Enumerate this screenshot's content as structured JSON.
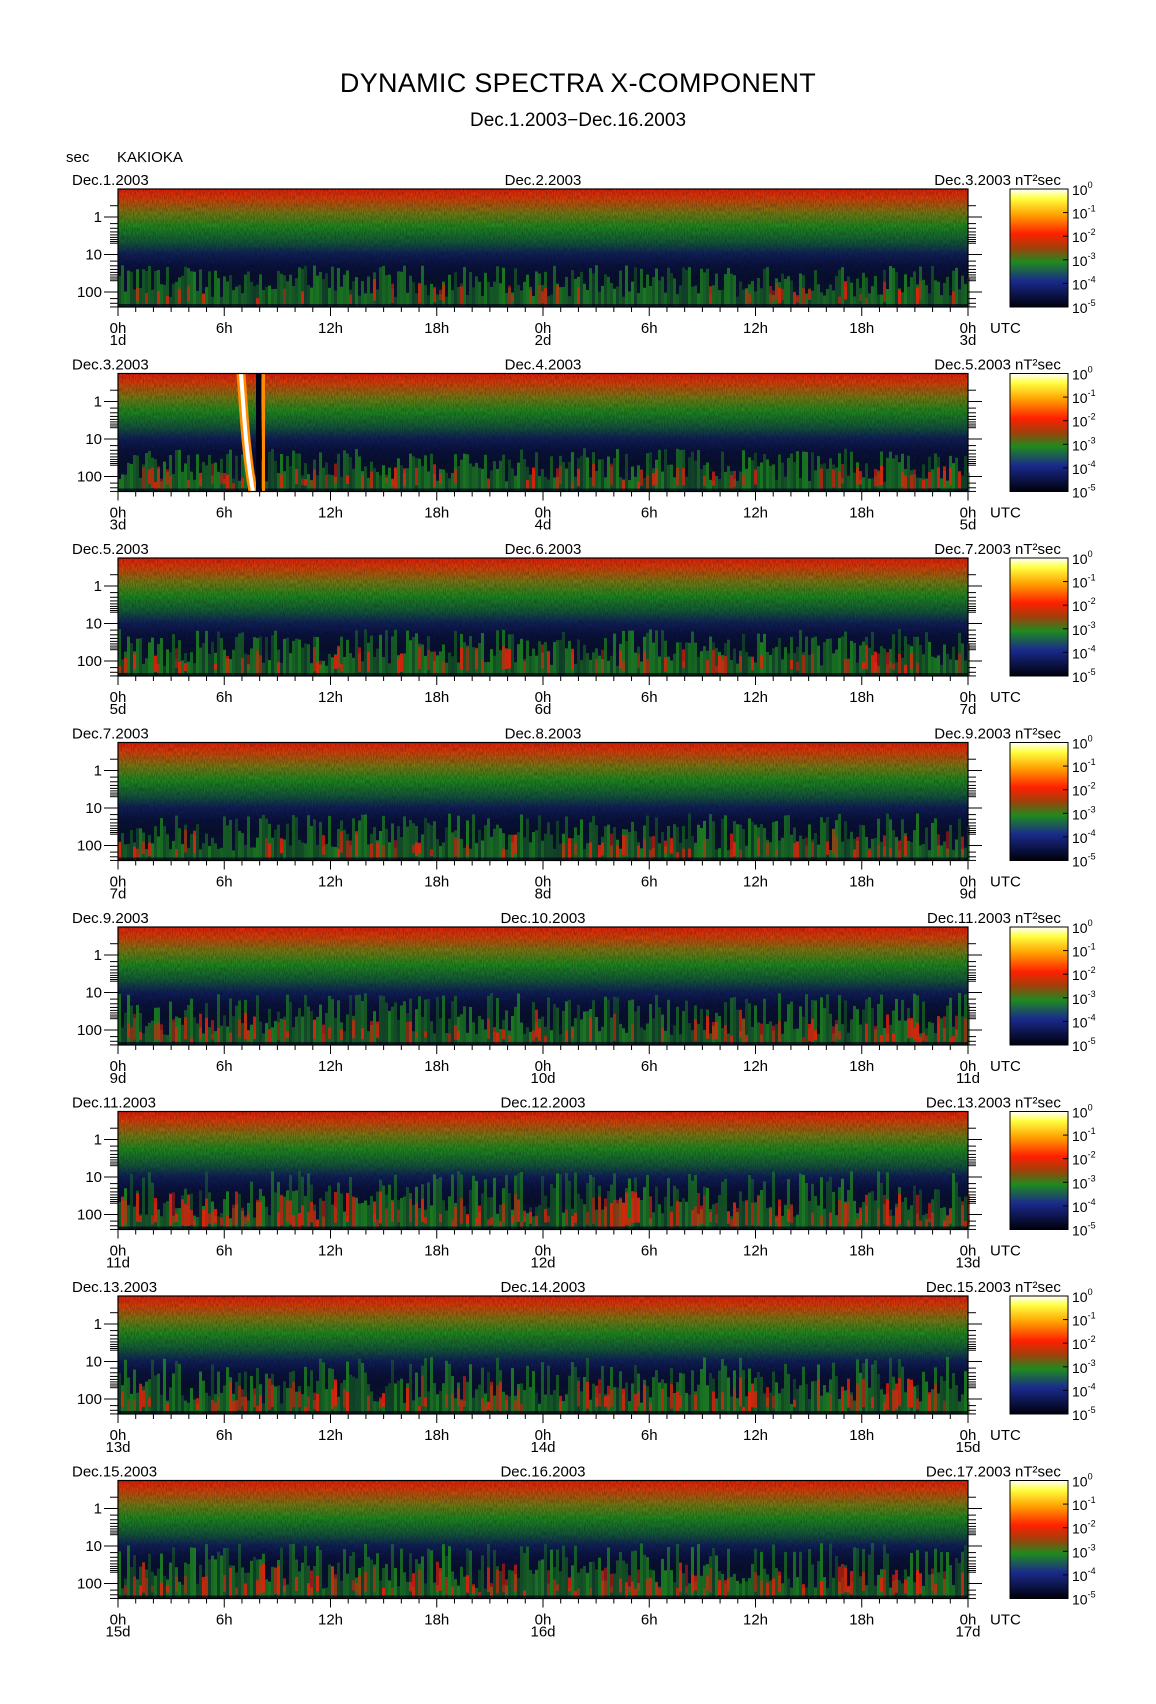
{
  "title": "DYNAMIC SPECTRA X-COMPONENT",
  "subtitle": "Dec.1.2003−Dec.16.2003",
  "y_unit_label": "sec",
  "station": "KAKIOKA",
  "power_unit": "nT²sec",
  "utc_label": "UTC",
  "colors": {
    "low": "#00001a",
    "blue": "#1a2a8c",
    "green": "#1f8a1f",
    "red": "#e8200a",
    "orange": "#ff8c00",
    "yellow": "#ffff30",
    "white": "#ffffff"
  },
  "chart_data": {
    "type": "heatmap",
    "ylabel": "sec",
    "y_ticks": [
      "1",
      "10",
      "100"
    ],
    "x_ticks": [
      "0h",
      "6h",
      "12h",
      "18h",
      "0h",
      "6h",
      "12h",
      "18h",
      "0h"
    ],
    "colorbar_ticks": [
      {
        "base": "10",
        "exp": "0"
      },
      {
        "base": "10",
        "exp": "-1"
      },
      {
        "base": "10",
        "exp": "-2"
      },
      {
        "base": "10",
        "exp": "-3"
      },
      {
        "base": "10",
        "exp": "-4"
      },
      {
        "base": "10",
        "exp": "-5"
      }
    ],
    "panels": [
      {
        "date_start": "Dec.1.2003",
        "date_mid": "Dec.2.2003",
        "date_end": "Dec.3.2003",
        "day_labels": [
          "1d",
          "2d",
          "3d"
        ],
        "activity": 0.35
      },
      {
        "date_start": "Dec.3.2003",
        "date_mid": "Dec.4.2003",
        "date_end": "Dec.5.2003",
        "day_labels": [
          "3d",
          "4d",
          "5d"
        ],
        "activity": 0.4
      },
      {
        "date_start": "Dec.5.2003",
        "date_mid": "Dec.6.2003",
        "date_end": "Dec.7.2003",
        "day_labels": [
          "5d",
          "6d",
          "7d"
        ],
        "activity": 0.5
      },
      {
        "date_start": "Dec.7.2003",
        "date_mid": "Dec.8.2003",
        "date_end": "Dec.9.2003",
        "day_labels": [
          "7d",
          "8d",
          "9d"
        ],
        "activity": 0.5
      },
      {
        "date_start": "Dec.9.2003",
        "date_mid": "Dec.10.2003",
        "date_end": "Dec.11.2003",
        "day_labels": [
          "9d",
          "10d",
          "11d"
        ],
        "activity": 0.65
      },
      {
        "date_start": "Dec.11.2003",
        "date_mid": "Dec.12.2003",
        "date_end": "Dec.13.2003",
        "day_labels": [
          "11d",
          "12d",
          "13d"
        ],
        "activity": 0.85
      },
      {
        "date_start": "Dec.13.2003",
        "date_mid": "Dec.14.2003",
        "date_end": "Dec.15.2003",
        "day_labels": [
          "13d",
          "14d",
          "15d"
        ],
        "activity": 0.8
      },
      {
        "date_start": "Dec.15.2003",
        "date_mid": "Dec.16.2003",
        "date_end": "Dec.17.2003",
        "day_labels": [
          "15d",
          "16d",
          "17d"
        ],
        "activity": 0.75
      }
    ]
  }
}
